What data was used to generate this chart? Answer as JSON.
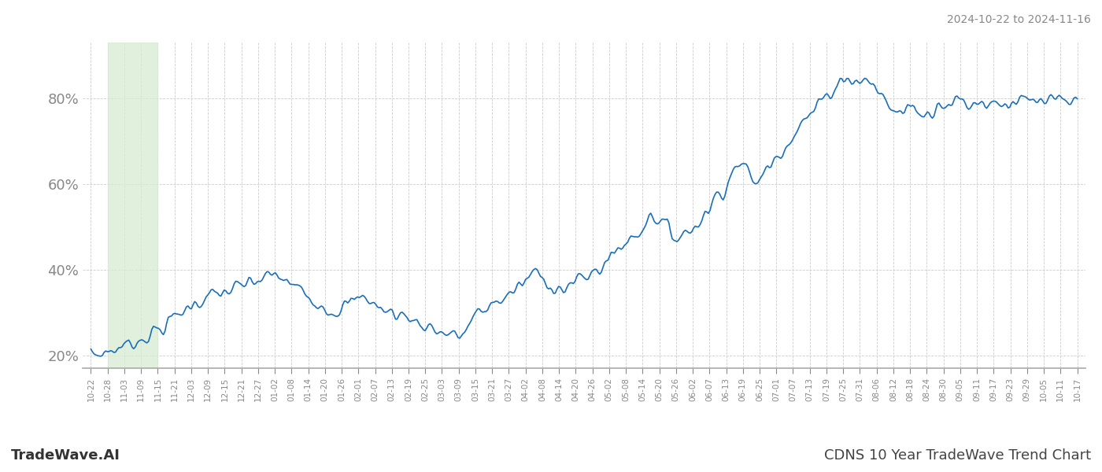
{
  "title_right": "2024-10-22 to 2024-11-16",
  "footer_left": "TradeWave.AI",
  "footer_right": "CDNS 10 Year TradeWave Trend Chart",
  "line_color": "#1a6fba",
  "line_width": 1.2,
  "bg_color": "#ffffff",
  "grid_color": "#cccccc",
  "highlight_color": "#d6ecd2",
  "highlight_alpha": 0.75,
  "ylim": [
    17,
    93
  ],
  "yticks": [
    20,
    40,
    60,
    80
  ],
  "ytick_labels": [
    "20%",
    "40%",
    "60%",
    "80%"
  ],
  "x_labels": [
    "10-22",
    "10-28",
    "11-03",
    "11-09",
    "11-15",
    "11-21",
    "12-03",
    "12-09",
    "12-15",
    "12-21",
    "12-27",
    "01-02",
    "01-08",
    "01-14",
    "01-20",
    "01-26",
    "02-01",
    "02-07",
    "02-13",
    "02-19",
    "02-25",
    "03-03",
    "03-09",
    "03-15",
    "03-21",
    "03-27",
    "04-02",
    "04-08",
    "04-14",
    "04-20",
    "04-26",
    "05-02",
    "05-08",
    "05-14",
    "05-20",
    "05-26",
    "06-02",
    "06-07",
    "06-13",
    "06-19",
    "06-25",
    "07-01",
    "07-07",
    "07-13",
    "07-19",
    "07-25",
    "07-31",
    "08-06",
    "08-12",
    "08-18",
    "08-24",
    "08-30",
    "09-05",
    "09-11",
    "09-17",
    "09-23",
    "09-29",
    "10-05",
    "10-11",
    "10-17"
  ],
  "highlight_label_start": "10-28",
  "highlight_label_end": "11-15"
}
